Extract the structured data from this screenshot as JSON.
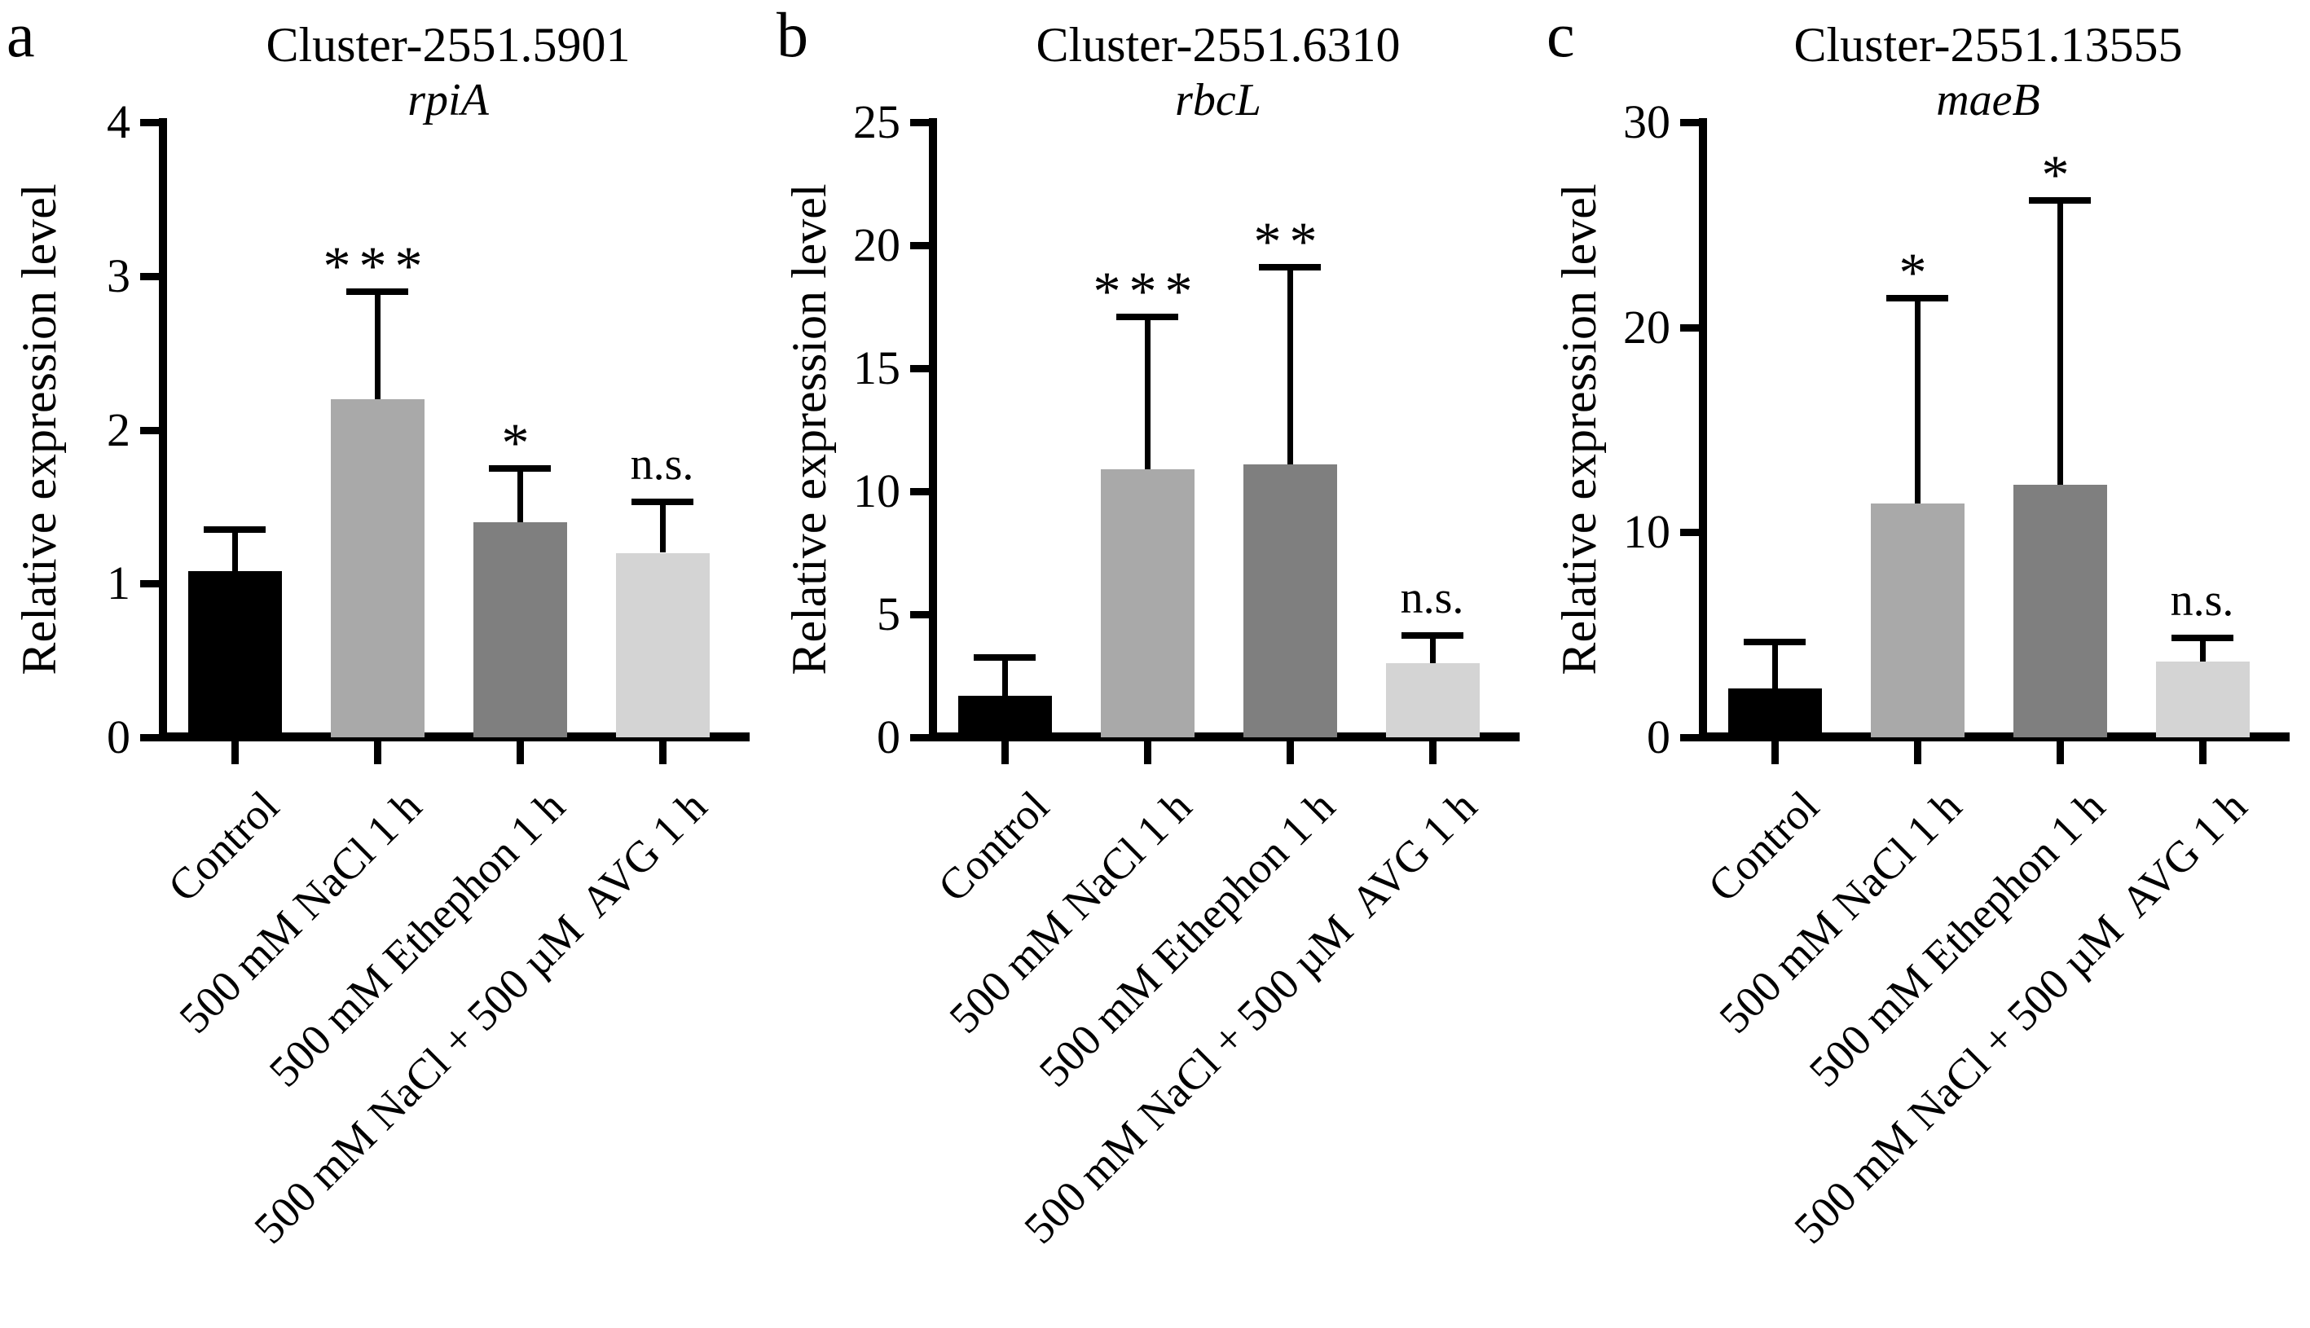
{
  "figure_caption": "Relative expression bar charts for three gene clusters under salt, ethephon and AVG treatments",
  "chart_data": [
    {
      "type": "bar",
      "panel_letter": "a",
      "title": "Cluster-2551.5901",
      "gene": "rpiA",
      "ylabel": "Relative expression level",
      "xlabel": "",
      "ylim": [
        0,
        4
      ],
      "yticks": [
        0,
        1,
        2,
        3,
        4
      ],
      "grid": false,
      "legend": "none",
      "categories": [
        "Control",
        "500 mM NaCl 1 h",
        "500 mM Ethephon 1 h",
        "500 mM NaCl + 500 µM  AVG 1 h"
      ],
      "values": [
        1.08,
        2.2,
        1.4,
        1.2
      ],
      "error_top": [
        1.35,
        2.9,
        1.75,
        1.53
      ],
      "significance": [
        "",
        "***",
        "*",
        "n.s."
      ],
      "bar_colors": [
        "#000000",
        "#a9a9a9",
        "#7f7f7f",
        "#d4d4d4"
      ]
    },
    {
      "type": "bar",
      "panel_letter": "b",
      "title": "Cluster-2551.6310",
      "gene": "rbcL",
      "ylabel": "Relative expression level",
      "xlabel": "",
      "ylim": [
        0,
        25
      ],
      "yticks": [
        0,
        5,
        10,
        15,
        20,
        25
      ],
      "grid": false,
      "legend": "none",
      "categories": [
        "Control",
        "500 mM NaCl 1 h",
        "500 mM Ethephon 1 h",
        "500 mM NaCl + 500 µM  AVG 1 h"
      ],
      "values": [
        1.7,
        10.9,
        11.1,
        3.0
      ],
      "error_top": [
        3.25,
        17.1,
        19.1,
        4.15
      ],
      "significance": [
        "",
        "***",
        "**",
        "n.s."
      ],
      "bar_colors": [
        "#000000",
        "#a9a9a9",
        "#7f7f7f",
        "#d4d4d4"
      ]
    },
    {
      "type": "bar",
      "panel_letter": "c",
      "title": "Cluster-2551.13555",
      "gene": "maeB",
      "ylabel": "Relative expression level",
      "xlabel": "",
      "ylim": [
        0,
        30
      ],
      "yticks": [
        0,
        10,
        20,
        30
      ],
      "grid": false,
      "legend": "none",
      "categories": [
        "Control",
        "500 mM NaCl 1 h",
        "500 mM Ethephon 1 h",
        "500 mM NaCl + 500 µM  AVG 1 h"
      ],
      "values": [
        2.4,
        11.4,
        12.3,
        3.7
      ],
      "error_top": [
        4.65,
        21.4,
        26.2,
        4.85
      ],
      "significance": [
        "",
        "*",
        "*",
        "n.s."
      ],
      "bar_colors": [
        "#000000",
        "#a9a9a9",
        "#7f7f7f",
        "#d4d4d4"
      ]
    }
  ]
}
